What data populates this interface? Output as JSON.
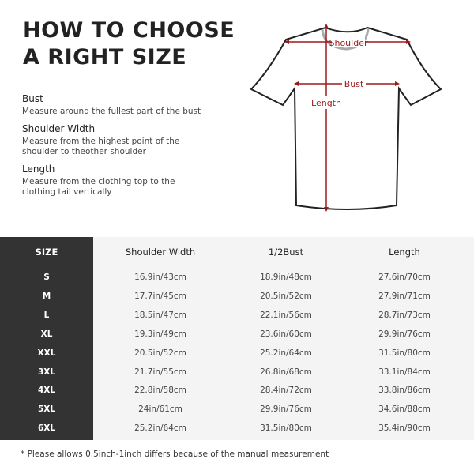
{
  "title": [
    "HOW TO CHOOSE",
    "A RIGHT SIZE"
  ],
  "definitions": [
    {
      "term": "Bust",
      "desc": "Measure around the fullest part of the bust"
    },
    {
      "term": "Shoulder Width",
      "desc": "Measure from the highest point of the shoulder to theother shoulder"
    },
    {
      "term": "Length",
      "desc": "Measure from the clothing top to the clothing tail vertically"
    }
  ],
  "diagram": {
    "shoulder": "Shoulder",
    "bust": "Bust",
    "length": "Length",
    "accent": "#9b1b1b"
  },
  "table": {
    "headers": [
      "SIZE",
      "Shoulder Width",
      "1/2Bust",
      "Length"
    ],
    "rows": [
      [
        "S",
        "16.9in/43cm",
        "18.9in/48cm",
        "27.6in/70cm"
      ],
      [
        "M",
        "17.7in/45cm",
        "20.5in/52cm",
        "27.9in/71cm"
      ],
      [
        "L",
        "18.5in/47cm",
        "22.1in/56cm",
        "28.7in/73cm"
      ],
      [
        "XL",
        "19.3in/49cm",
        "23.6in/60cm",
        "29.9in/76cm"
      ],
      [
        "XXL",
        "20.5in/52cm",
        "25.2in/64cm",
        "31.5in/80cm"
      ],
      [
        "3XL",
        "21.7in/55cm",
        "26.8in/68cm",
        "33.1in/84cm"
      ],
      [
        "4XL",
        "22.8in/58cm",
        "28.4in/72cm",
        "33.8in/86cm"
      ],
      [
        "5XL",
        "24in/61cm",
        "29.9in/76cm",
        "34.6in/88cm"
      ],
      [
        "6XL",
        "25.2in/64cm",
        "31.5in/80cm",
        "35.4in/90cm"
      ]
    ]
  },
  "note": "* Please allows 0.5inch-1inch differs because of the  manual measurement"
}
